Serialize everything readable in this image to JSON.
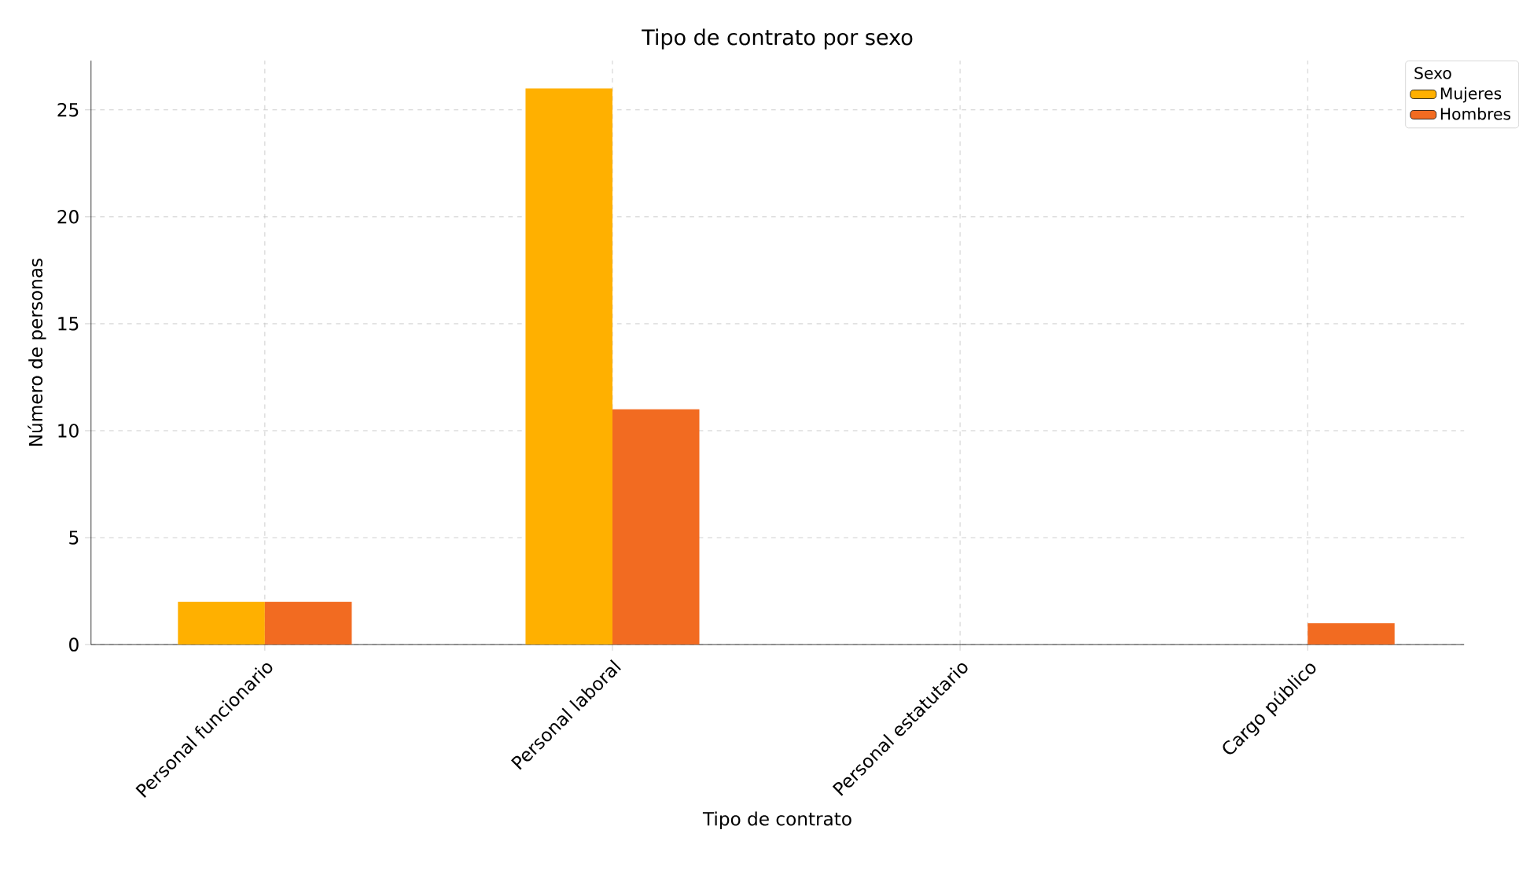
{
  "chart_data": {
    "type": "bar",
    "title": "Tipo de contrato por sexo",
    "xlabel": "Tipo de contrato",
    "ylabel": "Número de personas",
    "legend_title": "Sexo",
    "categories": [
      "Personal funcionario",
      "Personal laboral",
      "Personal estatutario",
      "Cargo público"
    ],
    "series": [
      {
        "name": "Mujeres",
        "color": "#ffb000",
        "values": [
          2,
          26,
          0,
          0
        ]
      },
      {
        "name": "Hombres",
        "color": "#f26b21",
        "values": [
          2,
          11,
          0,
          1
        ]
      }
    ],
    "ylim": [
      0,
      27.3
    ],
    "yticks": [
      0,
      5,
      10,
      15,
      20,
      25
    ],
    "grid": true,
    "legend": "top right"
  }
}
